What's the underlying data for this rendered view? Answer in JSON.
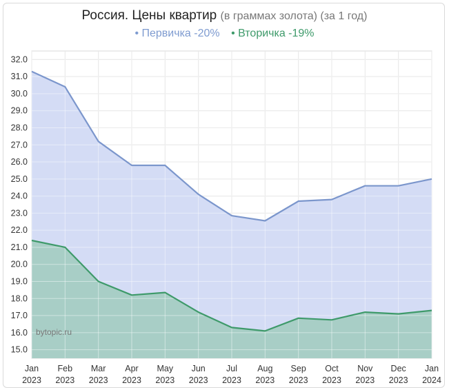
{
  "title": {
    "main": "Россия. Цены квартир",
    "subtitle": "(в граммах золота) (за 1 год)"
  },
  "legend": [
    {
      "label": "• Первичка -20%",
      "color": "#7e9bd0"
    },
    {
      "label": "• Вторичка -19%",
      "color": "#3e9a6a"
    }
  ],
  "watermark": "bytopic.ru",
  "colors": {
    "primary_line": "#7b96cc",
    "primary_fill": "#d4dcf5",
    "secondary_line": "#3e9a6a",
    "secondary_fill": "#a8cec6",
    "grid": "#d8d8d8"
  },
  "chart_data": {
    "type": "area",
    "x": [
      "Jan 2023",
      "Feb 2023",
      "Mar 2023",
      "Apr 2023",
      "May 2023",
      "Jun 2023",
      "Jul 2023",
      "Aug 2023",
      "Sep 2023",
      "Oct 2023",
      "Nov 2023",
      "Dec 2023",
      "Jan 2024"
    ],
    "x_tick_labels": [
      [
        "Jan",
        "2023"
      ],
      [
        "Feb",
        "2023"
      ],
      [
        "Mar",
        "2023"
      ],
      [
        "Apr",
        "2023"
      ],
      [
        "May",
        "2023"
      ],
      [
        "Jun",
        "2023"
      ],
      [
        "Jul",
        "2023"
      ],
      [
        "Aug",
        "2023"
      ],
      [
        "Sep",
        "2023"
      ],
      [
        "Oct",
        "2023"
      ],
      [
        "Nov",
        "2023"
      ],
      [
        "Dec",
        "2023"
      ],
      [
        "Jan",
        "2024"
      ]
    ],
    "y_ticks": [
      "15.0",
      "16.0",
      "17.0",
      "18.0",
      "19.0",
      "20.0",
      "21.0",
      "22.0",
      "23.0",
      "24.0",
      "25.0",
      "26.0",
      "27.0",
      "28.0",
      "29.0",
      "30.0",
      "31.0",
      "32.0"
    ],
    "ylim": [
      14.5,
      32.5
    ],
    "grid": true,
    "legend_position": "top-center",
    "series": [
      {
        "name": "Первичка -20%",
        "values": [
          31.3,
          30.4,
          27.2,
          25.8,
          25.8,
          24.1,
          22.85,
          22.55,
          23.7,
          23.8,
          24.6,
          24.6,
          25.0
        ]
      },
      {
        "name": "Вторичка -19%",
        "values": [
          21.4,
          21.0,
          19.0,
          18.2,
          18.35,
          17.2,
          16.3,
          16.1,
          16.85,
          16.75,
          17.2,
          17.1,
          17.3
        ]
      }
    ]
  }
}
